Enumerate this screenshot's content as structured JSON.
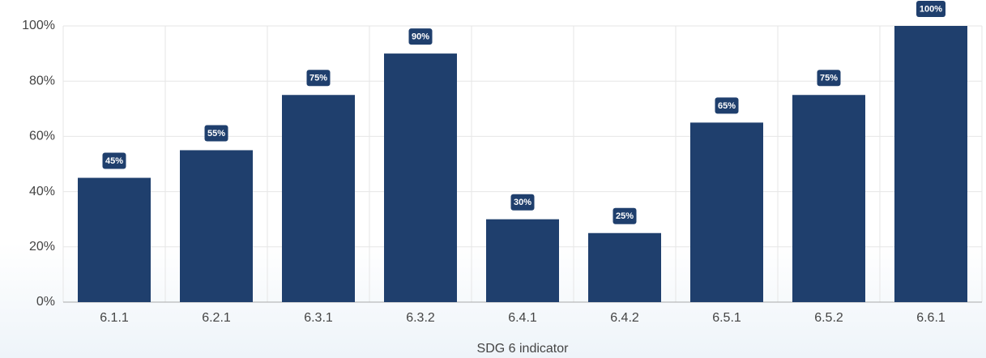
{
  "chart_data": {
    "type": "bar",
    "x_label": "SDG 6 indicator",
    "categories": [
      "6.1.1",
      "6.2.1",
      "6.3.1",
      "6.3.2",
      "6.4.1",
      "6.4.2",
      "6.5.1",
      "6.5.2",
      "6.6.1"
    ],
    "values": [
      45,
      55,
      75,
      90,
      30,
      25,
      65,
      75,
      100
    ],
    "value_labels": [
      "45%",
      "55%",
      "75%",
      "90%",
      "30%",
      "25%",
      "65%",
      "75%",
      "100%"
    ],
    "color": "#1f3f6d",
    "ylim": [
      0,
      100
    ],
    "yticks": [
      {
        "value": 0,
        "label": "0%"
      },
      {
        "value": 20,
        "label": "20%"
      },
      {
        "value": 40,
        "label": "40%"
      },
      {
        "value": 60,
        "label": "60%"
      },
      {
        "value": 80,
        "label": "80%"
      },
      {
        "value": 100,
        "label": "100%"
      }
    ],
    "grid": true
  }
}
